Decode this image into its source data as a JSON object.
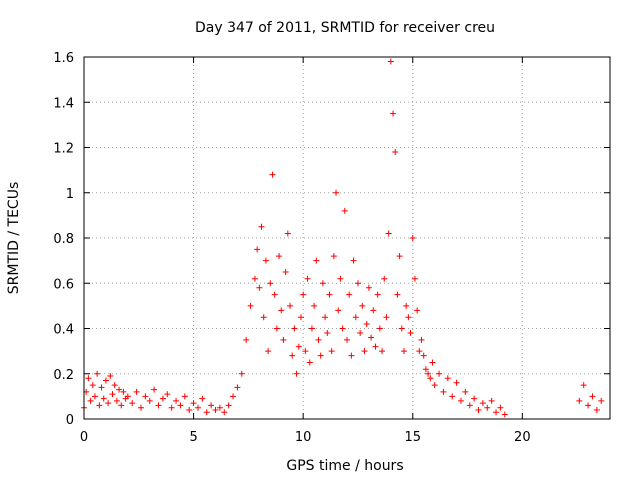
{
  "chart_data": {
    "type": "scatter",
    "title": "Day 347 of 2011, SRMTID for receiver creu",
    "xlabel": "GPS time / hours",
    "ylabel": "SRMTID / TECUs",
    "xlim": [
      0,
      24
    ],
    "ylim": [
      0,
      1.6
    ],
    "grid": true,
    "marker": "+",
    "color": "#ff0000",
    "x_ticks": [
      0,
      5,
      10,
      15,
      20
    ],
    "x_tick_labels": [
      "0",
      "5",
      "10",
      "15",
      "20"
    ],
    "y_ticks": [
      0,
      0.2,
      0.4,
      0.6,
      0.8,
      1.0,
      1.2,
      1.4,
      1.6
    ],
    "y_tick_labels": [
      "0",
      "0.2",
      "0.4",
      "0.6",
      "0.8",
      "1",
      "1.2",
      "1.4",
      "1.6"
    ],
    "series": [
      {
        "name": "SRMTID",
        "x": [
          0.0,
          0.1,
          0.2,
          0.3,
          0.4,
          0.5,
          0.6,
          0.7,
          0.8,
          0.9,
          1.0,
          1.1,
          1.2,
          1.3,
          1.4,
          1.5,
          1.6,
          1.7,
          1.8,
          1.9,
          2.0,
          2.2,
          2.4,
          2.6,
          2.8,
          3.0,
          3.2,
          3.4,
          3.6,
          3.8,
          4.0,
          4.2,
          4.4,
          4.6,
          4.8,
          5.0,
          5.2,
          5.4,
          5.6,
          5.8,
          6.0,
          6.2,
          6.4,
          6.6,
          6.8,
          7.0,
          7.2,
          7.4,
          7.6,
          7.8,
          7.9,
          8.0,
          8.1,
          8.2,
          8.3,
          8.4,
          8.5,
          8.6,
          8.7,
          8.8,
          8.9,
          9.0,
          9.1,
          9.2,
          9.3,
          9.4,
          9.5,
          9.6,
          9.7,
          9.8,
          9.9,
          10.0,
          10.1,
          10.2,
          10.3,
          10.4,
          10.5,
          10.6,
          10.7,
          10.8,
          10.9,
          11.0,
          11.1,
          11.2,
          11.3,
          11.4,
          11.5,
          11.6,
          11.7,
          11.8,
          11.9,
          12.0,
          12.1,
          12.2,
          12.3,
          12.4,
          12.5,
          12.6,
          12.7,
          12.8,
          12.9,
          13.0,
          13.1,
          13.2,
          13.3,
          13.4,
          13.5,
          13.6,
          13.7,
          13.8,
          13.9,
          14.0,
          14.1,
          14.2,
          14.3,
          14.4,
          14.5,
          14.6,
          14.7,
          14.8,
          14.9,
          15.0,
          15.1,
          15.2,
          15.3,
          15.4,
          15.5,
          15.6,
          15.7,
          15.8,
          15.9,
          16.0,
          16.2,
          16.4,
          16.6,
          16.8,
          17.0,
          17.2,
          17.4,
          17.6,
          17.8,
          18.0,
          18.2,
          18.4,
          18.6,
          18.8,
          19.0,
          19.2,
          22.6,
          22.8,
          23.0,
          23.2,
          23.4,
          23.6
        ],
        "y": [
          0.05,
          0.12,
          0.18,
          0.08,
          0.15,
          0.1,
          0.2,
          0.06,
          0.14,
          0.09,
          0.17,
          0.07,
          0.19,
          0.11,
          0.15,
          0.08,
          0.13,
          0.06,
          0.12,
          0.09,
          0.1,
          0.07,
          0.12,
          0.05,
          0.1,
          0.08,
          0.13,
          0.06,
          0.09,
          0.11,
          0.05,
          0.08,
          0.06,
          0.1,
          0.04,
          0.07,
          0.05,
          0.09,
          0.03,
          0.06,
          0.04,
          0.05,
          0.03,
          0.06,
          0.1,
          0.14,
          0.2,
          0.35,
          0.5,
          0.62,
          0.75,
          0.58,
          0.85,
          0.45,
          0.7,
          0.3,
          0.6,
          1.08,
          0.55,
          0.4,
          0.72,
          0.48,
          0.35,
          0.65,
          0.82,
          0.5,
          0.28,
          0.4,
          0.2,
          0.32,
          0.45,
          0.55,
          0.3,
          0.62,
          0.25,
          0.4,
          0.5,
          0.7,
          0.35,
          0.28,
          0.6,
          0.45,
          0.38,
          0.55,
          0.3,
          0.72,
          1.0,
          0.48,
          0.62,
          0.4,
          0.92,
          0.35,
          0.55,
          0.28,
          0.7,
          0.45,
          0.6,
          0.38,
          0.5,
          0.3,
          0.42,
          0.58,
          0.36,
          0.48,
          0.32,
          0.55,
          0.4,
          0.3,
          0.62,
          0.45,
          0.82,
          1.58,
          1.35,
          1.18,
          0.55,
          0.72,
          0.4,
          0.3,
          0.5,
          0.45,
          0.38,
          0.8,
          0.62,
          0.48,
          0.3,
          0.35,
          0.28,
          0.22,
          0.2,
          0.18,
          0.25,
          0.15,
          0.2,
          0.12,
          0.18,
          0.1,
          0.16,
          0.08,
          0.12,
          0.06,
          0.09,
          0.04,
          0.07,
          0.05,
          0.08,
          0.03,
          0.05,
          0.02,
          0.08,
          0.15,
          0.06,
          0.1,
          0.04,
          0.08
        ]
      }
    ]
  }
}
